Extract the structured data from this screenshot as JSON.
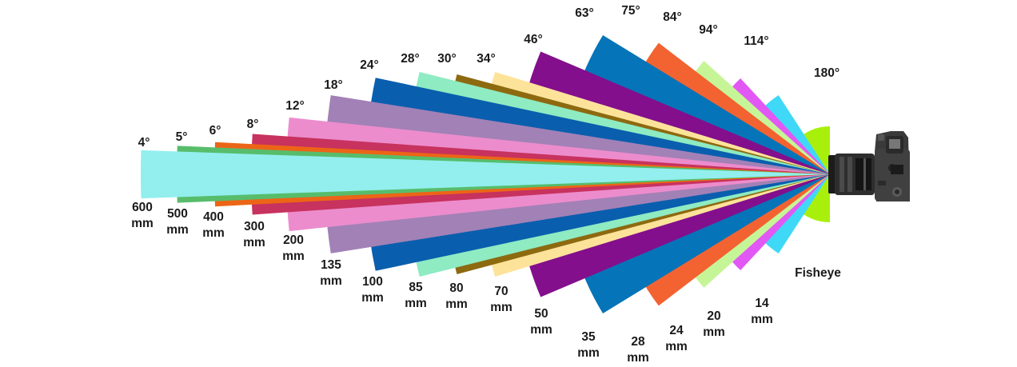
{
  "lenses": [
    {
      "angle": "600 mm",
      "fov": "4°",
      "fov_deg": 4,
      "color": "#92EFEE"
    },
    {
      "angle": "500 mm",
      "fov": "5°",
      "fov_deg": 5,
      "color": "#57BD6B"
    },
    {
      "angle": "400 mm",
      "fov": "6°",
      "fov_deg": 6,
      "color": "#EC6517"
    },
    {
      "angle": "300 mm",
      "fov": "8°",
      "fov_deg": 8,
      "color": "#C7325E"
    },
    {
      "angle": "200 mm",
      "fov": "12°",
      "fov_deg": 12,
      "color": "#EC8CCD"
    },
    {
      "angle": "135 mm",
      "fov": "18°",
      "fov_deg": 18,
      "color": "#A281B6"
    },
    {
      "angle": "100 mm",
      "fov": "24°",
      "fov_deg": 24,
      "color": "#0A5EAE"
    },
    {
      "angle": "85 mm",
      "fov": "28°",
      "fov_deg": 28,
      "color": "#8EEBC2"
    },
    {
      "angle": "80 mm",
      "fov": "30°",
      "fov_deg": 30,
      "color": "#8D6A10"
    },
    {
      "angle": "70 mm",
      "fov": "34°",
      "fov_deg": 34,
      "color": "#FDE39A"
    },
    {
      "angle": "50 mm",
      "fov": "46°",
      "fov_deg": 46,
      "color": "#830F8C"
    },
    {
      "angle": "35 mm",
      "fov": "63°",
      "fov_deg": 63,
      "color": "#0674B8"
    },
    {
      "angle": "28 mm",
      "fov": "75°",
      "fov_deg": 75,
      "color": "#F26331"
    },
    {
      "angle": "24 mm",
      "fov": "84°",
      "fov_deg": 84,
      "color": "#C6F597"
    },
    {
      "angle": "20 mm",
      "fov": "94°",
      "fov_deg": 94,
      "color": "#E158F4"
    },
    {
      "angle": "14 mm",
      "fov": "114°",
      "fov_deg": 114,
      "color": "#3FD8F7"
    },
    {
      "angle": "Fisheye",
      "fov": "180°",
      "fov_deg": 180,
      "color": "#A8F00C"
    }
  ],
  "camera": {
    "icon": "dslr-camera-icon",
    "body_color": "#2b2b2b"
  }
}
